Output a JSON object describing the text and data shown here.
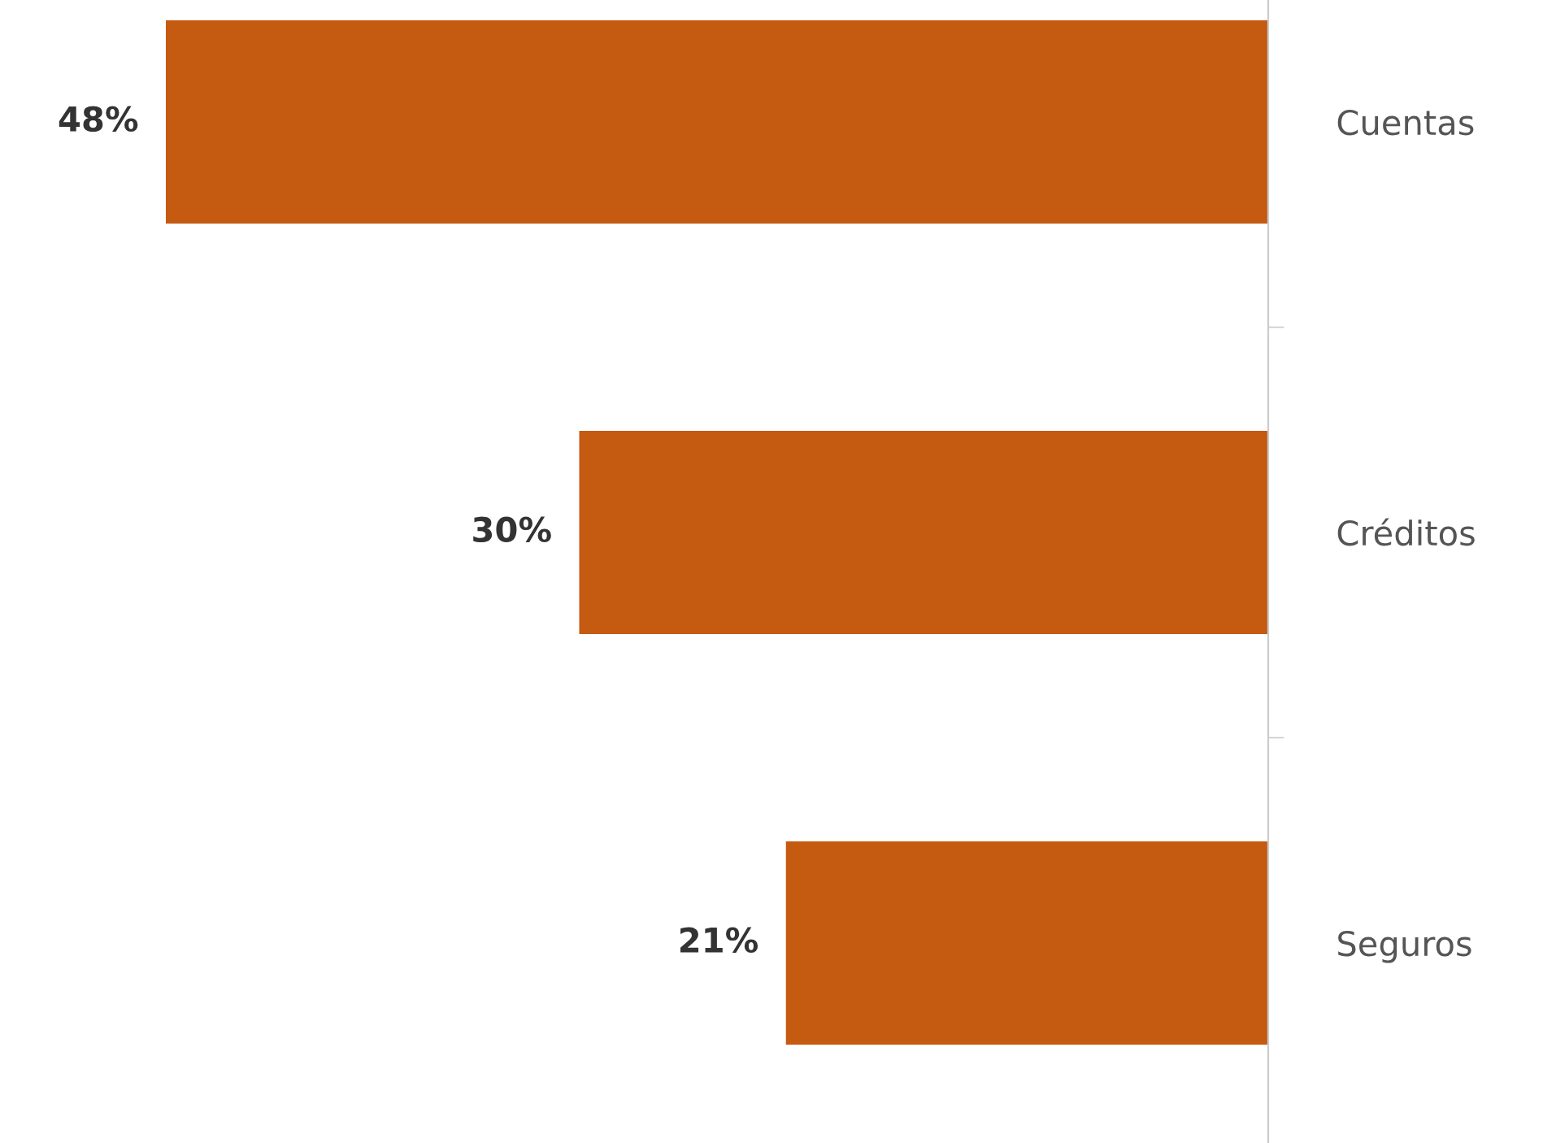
{
  "chart_data": {
    "type": "bar",
    "orientation": "horizontal",
    "categories": [
      "Cuentas",
      "Créditos",
      "Seguros"
    ],
    "values": [
      48,
      30,
      21
    ],
    "color": "#c55a11",
    "data_labels": true,
    "value_labels": [
      "48%",
      "30%",
      "21%"
    ],
    "tick_labels": "y",
    "grid": false
  }
}
